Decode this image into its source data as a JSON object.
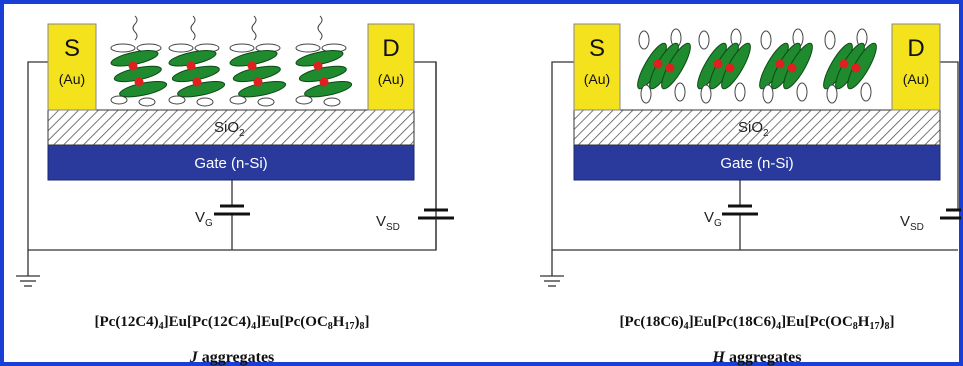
{
  "colors": {
    "frame": "#1a3fd6",
    "electrode": "#f4e21c",
    "gate": "#2a3a9c",
    "molecule": "#1f8a2e",
    "metal": "#e02020",
    "wire": "#333333"
  },
  "panels": [
    {
      "source_letter": "S",
      "drain_letter": "D",
      "electrode_material": "(Au)",
      "dielectric_base": "SiO",
      "dielectric_sub": "2",
      "gate_label": "Gate (n-Si)",
      "vg_base": "V",
      "vg_sub": "G",
      "vsd_base": "V",
      "vsd_sub": "SD",
      "formula": {
        "p1": "[Pc(12C4)",
        "s1": "4",
        "p2": "]Eu[Pc(12C4)",
        "s2": "4",
        "p3": "]Eu[Pc(OC",
        "s3": "8",
        "p4": "H",
        "s4": "17",
        "p5": ")",
        "s5": "8",
        "p6": "]"
      },
      "aggregate_letter": "J",
      "aggregate_word": " aggregates"
    },
    {
      "source_letter": "S",
      "drain_letter": "D",
      "electrode_material": "(Au)",
      "dielectric_base": "SiO",
      "dielectric_sub": "2",
      "gate_label": "Gate (n-Si)",
      "vg_base": "V",
      "vg_sub": "G",
      "vsd_base": "V",
      "vsd_sub": "SD",
      "formula": {
        "p1": "[Pc(18C6)",
        "s1": "4",
        "p2": "]Eu[Pc(18C6)",
        "s2": "4",
        "p3": "]Eu[Pc(OC",
        "s3": "8",
        "p4": "H",
        "s4": "17",
        "p5": ")",
        "s5": "8",
        "p6": "]"
      },
      "aggregate_letter": "H",
      "aggregate_word": " aggregates"
    }
  ]
}
